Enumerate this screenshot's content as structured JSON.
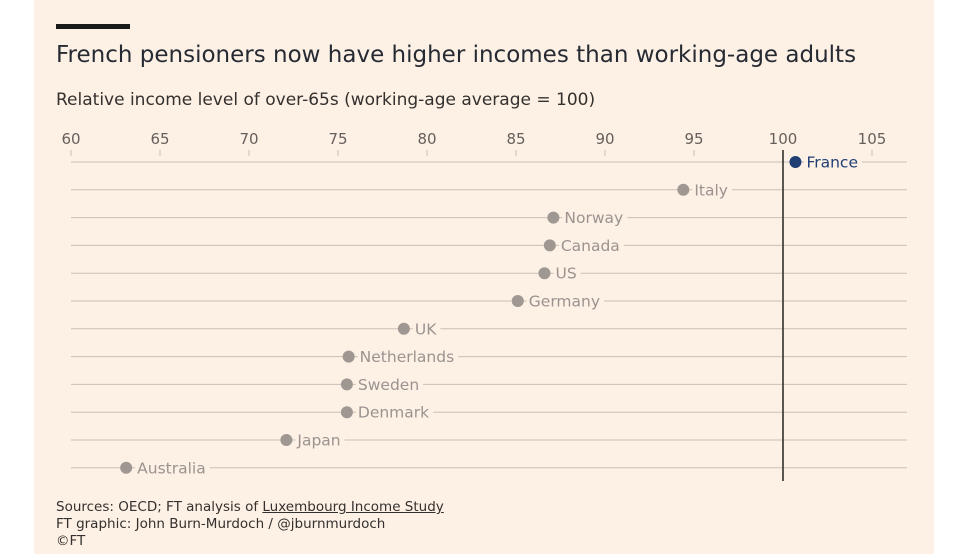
{
  "header": {
    "title": "French pensioners now have higher incomes than working-age adults",
    "subtitle": "Relative income level of over-65s (working-age average = 100)"
  },
  "footer": {
    "sources_prefix": "Sources: OECD; FT analysis of ",
    "sources_link": "Luxembourg Income Study",
    "credit": "FT graphic: John Burn-Murdoch / @jburnmurdoch",
    "copyright": "©FT"
  },
  "colors": {
    "background": "#fdf1e5",
    "dot": "#9e9792",
    "highlight": "#1f3e74",
    "reference_line": "#33302e",
    "gridline": "#c9bfb6"
  },
  "chart_data": {
    "type": "scatter",
    "title": "French pensioners now have higher incomes than working-age adults",
    "subtitle": "Relative income level of over-65s (working-age average = 100)",
    "xlim": [
      60,
      107
    ],
    "xticks": [
      60,
      65,
      70,
      75,
      80,
      85,
      90,
      95,
      100,
      105
    ],
    "reference_x": 100,
    "grid": true,
    "highlight": "France",
    "categories": [
      "France",
      "Italy",
      "Norway",
      "Canada",
      "US",
      "Germany",
      "UK",
      "Netherlands",
      "Sweden",
      "Denmark",
      "Japan",
      "Australia"
    ],
    "values": [
      100.7,
      94.4,
      87.1,
      86.9,
      86.6,
      85.1,
      78.7,
      75.6,
      75.5,
      75.5,
      72.1,
      63.1
    ]
  }
}
